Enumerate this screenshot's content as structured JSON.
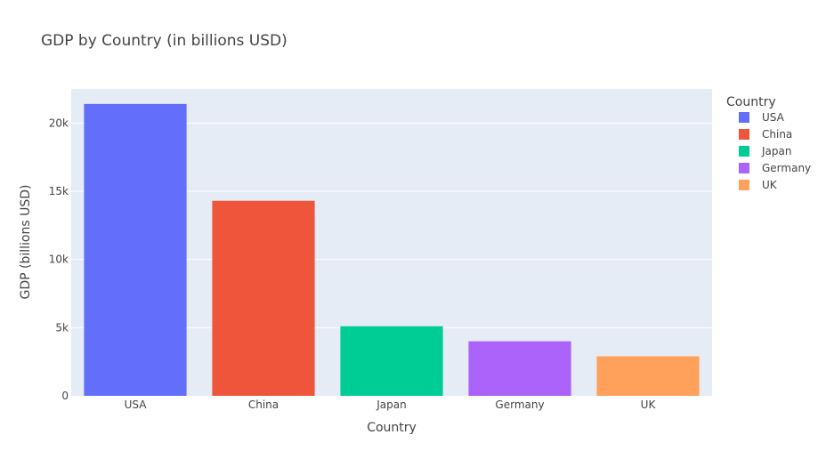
{
  "chart_data": {
    "type": "bar",
    "title": "GDP by Country (in billions USD)",
    "xlabel": "Country",
    "ylabel": "GDP (billions USD)",
    "categories": [
      "USA",
      "China",
      "Japan",
      "Germany",
      "UK"
    ],
    "values": [
      21400,
      14300,
      5100,
      4000,
      2900
    ],
    "colors": [
      "#636efa",
      "#ef553b",
      "#00cc96",
      "#ab63fa",
      "#ffa15a"
    ],
    "ylim": [
      0,
      22500
    ],
    "yticks": [
      0,
      5000,
      10000,
      15000,
      20000
    ],
    "ytick_labels": [
      "0",
      "5k",
      "10k",
      "15k",
      "20k"
    ],
    "legend": {
      "title": "Country",
      "placement": "right",
      "entries": [
        "USA",
        "China",
        "Japan",
        "Germany",
        "UK"
      ]
    },
    "grid": true,
    "plot_background": "#e5ecf6"
  }
}
